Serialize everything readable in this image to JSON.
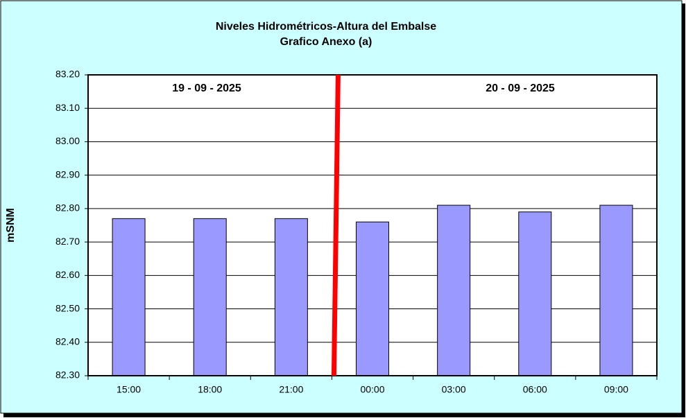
{
  "chart_data": {
    "type": "bar",
    "title": "Niveles Hidrométricos-Altura del Embalse",
    "subtitle": "Grafico Anexo (a)",
    "y_label": "mSNM",
    "annotations": [
      "19 - 09 - 2025",
      "20 - 09 - 2025"
    ],
    "categories": [
      "15:00",
      "18:00",
      "21:00",
      "00:00",
      "03:00",
      "06:00",
      "09:00"
    ],
    "values": [
      82.77,
      82.77,
      82.77,
      82.76,
      82.81,
      82.79,
      82.81
    ],
    "color": "#9999ff",
    "ylim": [
      82.3,
      83.2
    ],
    "yticks": [
      {
        "value": 82.3,
        "label": "82.30"
      },
      {
        "value": 82.4,
        "label": "82.40"
      },
      {
        "value": 82.5,
        "label": "82.50"
      },
      {
        "value": 82.6,
        "label": "82.60"
      },
      {
        "value": 82.7,
        "label": "82.70"
      },
      {
        "value": 82.8,
        "label": "82.80"
      },
      {
        "value": 82.9,
        "label": "82.90"
      },
      {
        "value": 83.0,
        "label": "83.00"
      },
      {
        "value": 83.1,
        "label": "83.10"
      },
      {
        "value": 83.2,
        "label": "83.20"
      }
    ],
    "grid": true
  }
}
